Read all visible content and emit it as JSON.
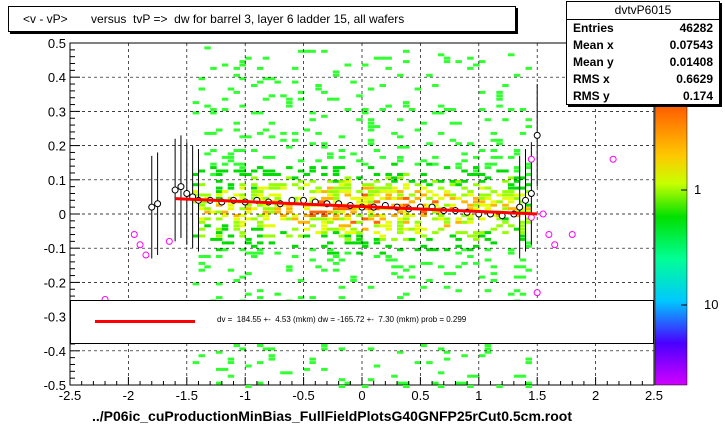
{
  "title": "<v - vP>       versus  tvP =>  dw for barrel 3, layer 6 ladder 15, all wafers",
  "stats": {
    "name": "dvtvP6015",
    "rows": [
      {
        "key": "Entries",
        "value": "46282"
      },
      {
        "key": "Mean x",
        "value": "0.07543"
      },
      {
        "key": "Mean y",
        "value": "0.01408"
      },
      {
        "key": "RMS x",
        "value": "0.6629"
      },
      {
        "key": "RMS y",
        "value": "0.174"
      }
    ]
  },
  "fit_text": "dv =  184.55 +-  4.53 (mkm) dw = -165.72 +-  7.30 (mkm) prob = 0.299",
  "x_title": "../P06ic_cuProductionMinBias_FullFieldPlotsG40GNFP25rCut0.5cm.root",
  "colorbar_labels": [
    "1",
    "10"
  ],
  "chart_data": {
    "type": "heatmap",
    "title": "<v - vP>       versus  tvP =>  dw for barrel 3, layer 6 ladder 15, all wafers",
    "xlabel": "../P06ic_cuProductionMinBias_FullFieldPlotsG40GNFP25rCut0.5cm.root",
    "ylabel": "",
    "xlim": [
      -2.5,
      2.5
    ],
    "ylim": [
      -0.5,
      0.5
    ],
    "x_ticks": [
      "-2.5",
      "-2",
      "-1.5",
      "-1",
      "-0.5",
      "0",
      "0.5",
      "1",
      "1.5",
      "2",
      "2.5"
    ],
    "y_ticks": [
      "-0.5",
      "-0.4",
      "-0.3",
      "-0.2",
      "-0.1",
      "0",
      "0.1",
      "0.2",
      "0.3",
      "0.4",
      "0.5"
    ],
    "grid": true,
    "density_region": {
      "x": [
        -1.45,
        1.45
      ],
      "y": [
        -0.5,
        0.5
      ],
      "peak_y": 0.02
    },
    "fit_line": {
      "x": [
        -1.6,
        1.5
      ],
      "y": [
        0.045,
        0.0
      ],
      "color": "#ff0000"
    },
    "profile_points": [
      [
        -1.6,
        0.07
      ],
      [
        -1.55,
        0.08
      ],
      [
        -1.5,
        0.06
      ],
      [
        -1.45,
        0.05
      ],
      [
        -1.4,
        0.04
      ],
      [
        -1.3,
        0.04
      ],
      [
        -1.2,
        0.035
      ],
      [
        -1.1,
        0.04
      ],
      [
        -1.0,
        0.035
      ],
      [
        -0.9,
        0.04
      ],
      [
        -0.8,
        0.035
      ],
      [
        -0.7,
        0.03
      ],
      [
        -0.6,
        0.04
      ],
      [
        -0.5,
        0.04
      ],
      [
        -0.4,
        0.035
      ],
      [
        -0.3,
        0.03
      ],
      [
        -0.2,
        0.03
      ],
      [
        -0.1,
        0.025
      ],
      [
        0.0,
        0.02
      ],
      [
        0.1,
        0.02
      ],
      [
        0.2,
        0.025
      ],
      [
        0.3,
        0.02
      ],
      [
        0.4,
        0.015
      ],
      [
        0.5,
        0.02
      ],
      [
        0.6,
        0.02
      ],
      [
        0.7,
        0.01
      ],
      [
        0.8,
        0.01
      ],
      [
        0.9,
        0.005
      ],
      [
        1.0,
        0.0
      ],
      [
        1.1,
        0.0
      ],
      [
        1.2,
        -0.005
      ],
      [
        1.3,
        0.0
      ],
      [
        1.35,
        0.02
      ],
      [
        1.4,
        0.04
      ],
      [
        1.45,
        0.06
      ],
      [
        1.5,
        0.23
      ],
      [
        -1.8,
        0.02
      ],
      [
        -1.75,
        0.03
      ]
    ],
    "outlier_points": [
      [
        -2.2,
        -0.25
      ],
      [
        -1.95,
        -0.06
      ],
      [
        -1.9,
        -0.09
      ],
      [
        -1.85,
        -0.12
      ],
      [
        -1.65,
        -0.08
      ],
      [
        1.55,
        0.0
      ],
      [
        1.6,
        -0.06
      ],
      [
        1.65,
        -0.09
      ],
      [
        1.8,
        -0.06
      ],
      [
        2.15,
        0.16
      ],
      [
        1.45,
        0.16
      ],
      [
        1.5,
        -0.23
      ],
      [
        1.45,
        -0.01
      ]
    ],
    "colors": {
      "points": "#000000",
      "outliers": "#ff00ff",
      "fit": "#ff0000"
    }
  }
}
